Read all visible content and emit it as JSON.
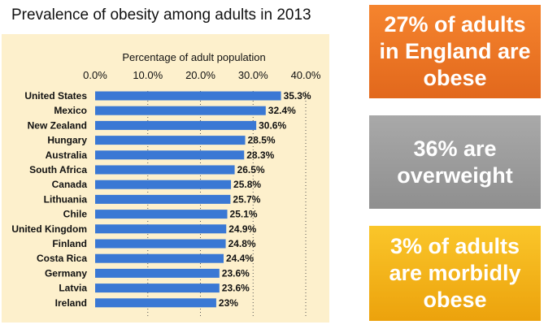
{
  "chart_data": {
    "type": "bar",
    "orientation": "horizontal",
    "title": "Prevalence of obesity among adults in 2013",
    "xlabel": "Percentage of adult population",
    "ylabel": "",
    "xlim": [
      0,
      40
    ],
    "ticks": [
      0,
      10,
      20,
      30,
      40
    ],
    "tick_labels": [
      "0.0%",
      "10.0%",
      "20.0%",
      "30.0%",
      "40.0%"
    ],
    "categories": [
      "United States",
      "Mexico",
      "New Zealand",
      "Hungary",
      "Australia",
      "South Africa",
      "Canada",
      "Lithuania",
      "Chile",
      "United Kingdom",
      "Finland",
      "Costa Rica",
      "Germany",
      "Latvia",
      "Ireland"
    ],
    "values": [
      35.3,
      32.4,
      30.6,
      28.5,
      28.3,
      26.5,
      25.8,
      25.7,
      25.1,
      24.9,
      24.8,
      24.4,
      23.6,
      23.6,
      23
    ],
    "value_labels": [
      "35.3%",
      "32.4%",
      "30.6%",
      "28.5%",
      "28.3%",
      "26.5%",
      "25.8%",
      "25.7%",
      "25.1%",
      "24.9%",
      "24.8%",
      "24.4%",
      "23.6%",
      "23.6%",
      "23%"
    ],
    "grid": true,
    "bar_color": "#3a78d4",
    "background_color": "#fdf0cc"
  },
  "stat_boxes": [
    {
      "text": "27% of adults in England are obese",
      "color": "#f07a26"
    },
    {
      "text": "36% are overweight",
      "color": "#9c9c9c"
    },
    {
      "text": "3% of adults are morbidly obese",
      "color": "#f5b81c"
    }
  ]
}
